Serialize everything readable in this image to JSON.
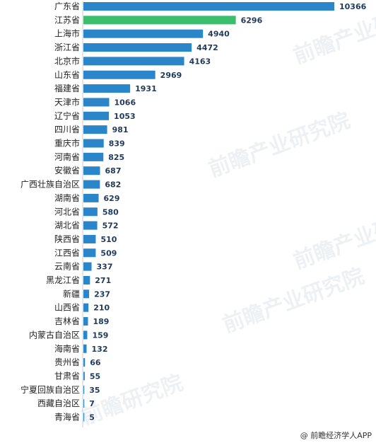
{
  "chart_data": {
    "type": "bar",
    "orientation": "horizontal",
    "title": "",
    "xlabel": "",
    "ylabel": "",
    "xlim": [
      0,
      11000
    ],
    "grid": false,
    "legend": "none",
    "categories": [
      "广东省",
      "江苏省",
      "上海市",
      "浙江省",
      "北京市",
      "山东省",
      "福建省",
      "天津市",
      "辽宁省",
      "四川省",
      "重庆市",
      "河南省",
      "安徽省",
      "广西壮族自治区",
      "湖南省",
      "河北省",
      "湖北省",
      "陕西省",
      "江西省",
      "云南省",
      "黑龙江省",
      "新疆",
      "山西省",
      "吉林省",
      "内蒙古自治区",
      "海南省",
      "贵州省",
      "甘肃省",
      "宁夏回族自治区",
      "西藏自治区",
      "青海省"
    ],
    "values": [
      10366,
      6296,
      4940,
      4472,
      4163,
      2969,
      1931,
      1066,
      1053,
      981,
      839,
      825,
      687,
      682,
      629,
      580,
      572,
      510,
      509,
      337,
      271,
      237,
      210,
      189,
      159,
      132,
      66,
      55,
      35,
      7,
      5
    ],
    "colors": {
      "bar": "#2b86c9",
      "highlight": "#3cbf6d",
      "highlight_index": 1
    }
  },
  "source": "@ 前瞻经济学人APP"
}
